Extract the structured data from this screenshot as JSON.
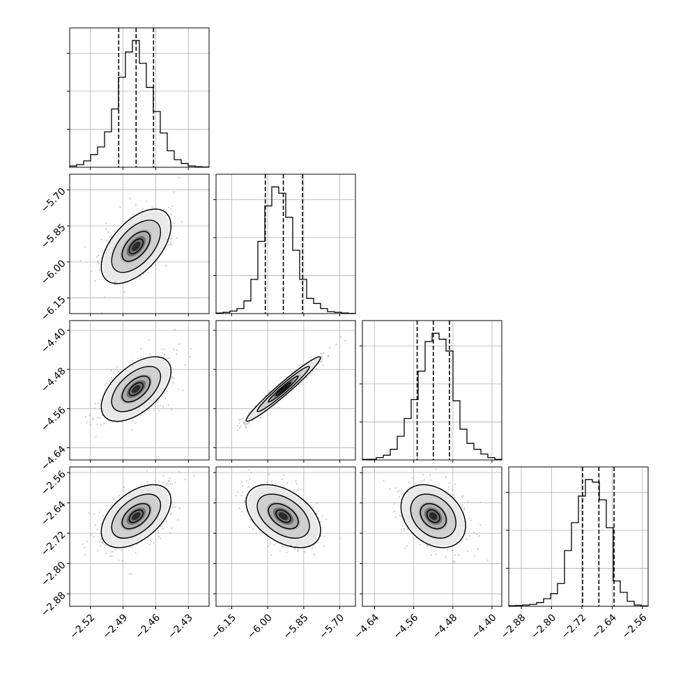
{
  "chart_data": {
    "type": "corner",
    "params": [
      {
        "ticks": [
          -2.52,
          -2.49,
          -2.46,
          -2.43
        ],
        "tick_labels": [
          "−2.52",
          "−2.49",
          "−2.46",
          "−2.43"
        ],
        "range": [
          -2.539,
          -2.411
        ],
        "quantiles": [
          -2.494,
          -2.478,
          -2.462
        ]
      },
      {
        "ticks": [
          -6.15,
          -6.0,
          -5.85,
          -5.7
        ],
        "tick_labels": [
          "−6.15",
          "−6.00",
          "−5.85",
          "−5.70"
        ],
        "range": [
          -6.215,
          -5.635
        ],
        "quantiles": [
          -6.01,
          -5.935,
          -5.855
        ]
      },
      {
        "ticks": [
          -4.64,
          -4.56,
          -4.48,
          -4.4
        ],
        "tick_labels": [
          "−4.64",
          "−4.56",
          "−4.48",
          "−4.40"
        ],
        "range": [
          -4.665,
          -4.38
        ],
        "quantiles": [
          -4.553,
          -4.52,
          -4.487
        ]
      },
      {
        "ticks": [
          -2.88,
          -2.8,
          -2.72,
          -2.64,
          -2.56
        ],
        "tick_labels": [
          "−2.88",
          "−2.80",
          "−2.72",
          "−2.64",
          "−2.56"
        ],
        "range": [
          -2.913,
          -2.545
        ],
        "quantiles": [
          -2.718,
          -2.675,
          -2.635
        ]
      }
    ],
    "histograms": [
      {
        "values": [
          1,
          2,
          5,
          10,
          16,
          28,
          46,
          71,
          91,
          100,
          82,
          63,
          44,
          27,
          13,
          6,
          3,
          1,
          0.5,
          0.2
        ]
      },
      {
        "values": [
          0.5,
          1,
          2,
          4,
          10,
          27,
          57,
          85,
          100,
          95,
          76,
          50,
          27,
          12,
          8,
          4,
          1.5,
          1,
          0.5,
          0.2
        ]
      },
      {
        "values": [
          0.5,
          0.6,
          2,
          4,
          9,
          20,
          35,
          51,
          75,
          100,
          107,
          102,
          92,
          50,
          26,
          14,
          9,
          5,
          2,
          0.5
        ]
      },
      {
        "values": [
          0.5,
          0.7,
          1,
          1.5,
          3,
          6,
          10,
          18,
          44,
          66,
          87,
          100,
          98,
          84,
          62,
          20,
          11,
          4,
          1,
          0.3
        ]
      }
    ],
    "grid": true,
    "xlabels": [],
    "ylabels": []
  }
}
